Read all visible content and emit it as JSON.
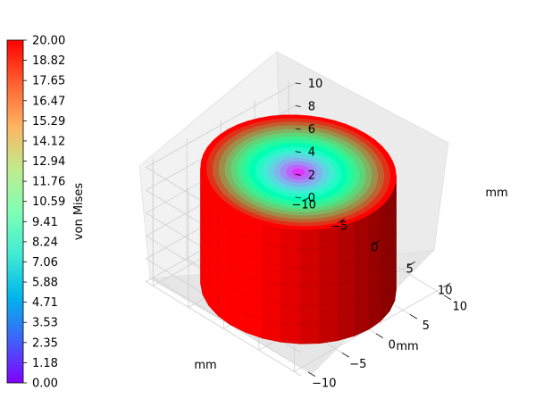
{
  "chart_data": {
    "type": "surface3d",
    "colormap": "rainbow",
    "colorbar": {
      "label": "von Mises",
      "ticks": [
        "0.00",
        "1.18",
        "2.35",
        "3.53",
        "4.71",
        "5.88",
        "7.06",
        "8.24",
        "9.41",
        "10.59",
        "11.76",
        "12.94",
        "14.12",
        "15.29",
        "16.47",
        "17.65",
        "18.82",
        "20.00"
      ],
      "range": [
        0,
        20
      ],
      "position": "left"
    },
    "axes": {
      "x": {
        "label": "mm",
        "ticks": [
          "−10",
          "−5",
          "0",
          "5",
          "10"
        ],
        "range": [
          -10,
          10
        ]
      },
      "y": {
        "label": "mm",
        "ticks": [
          "−10",
          "−5",
          "0",
          "5",
          "10"
        ],
        "range": [
          -10,
          10
        ]
      },
      "z": {
        "label": "mm",
        "ticks": [
          "0",
          "2",
          "4",
          "6",
          "8",
          "10"
        ],
        "range": [
          0,
          10
        ]
      }
    },
    "cylinder": {
      "radius": 10,
      "height": 10,
      "center_value": 0,
      "edge_value": 20
    },
    "grid": true
  }
}
